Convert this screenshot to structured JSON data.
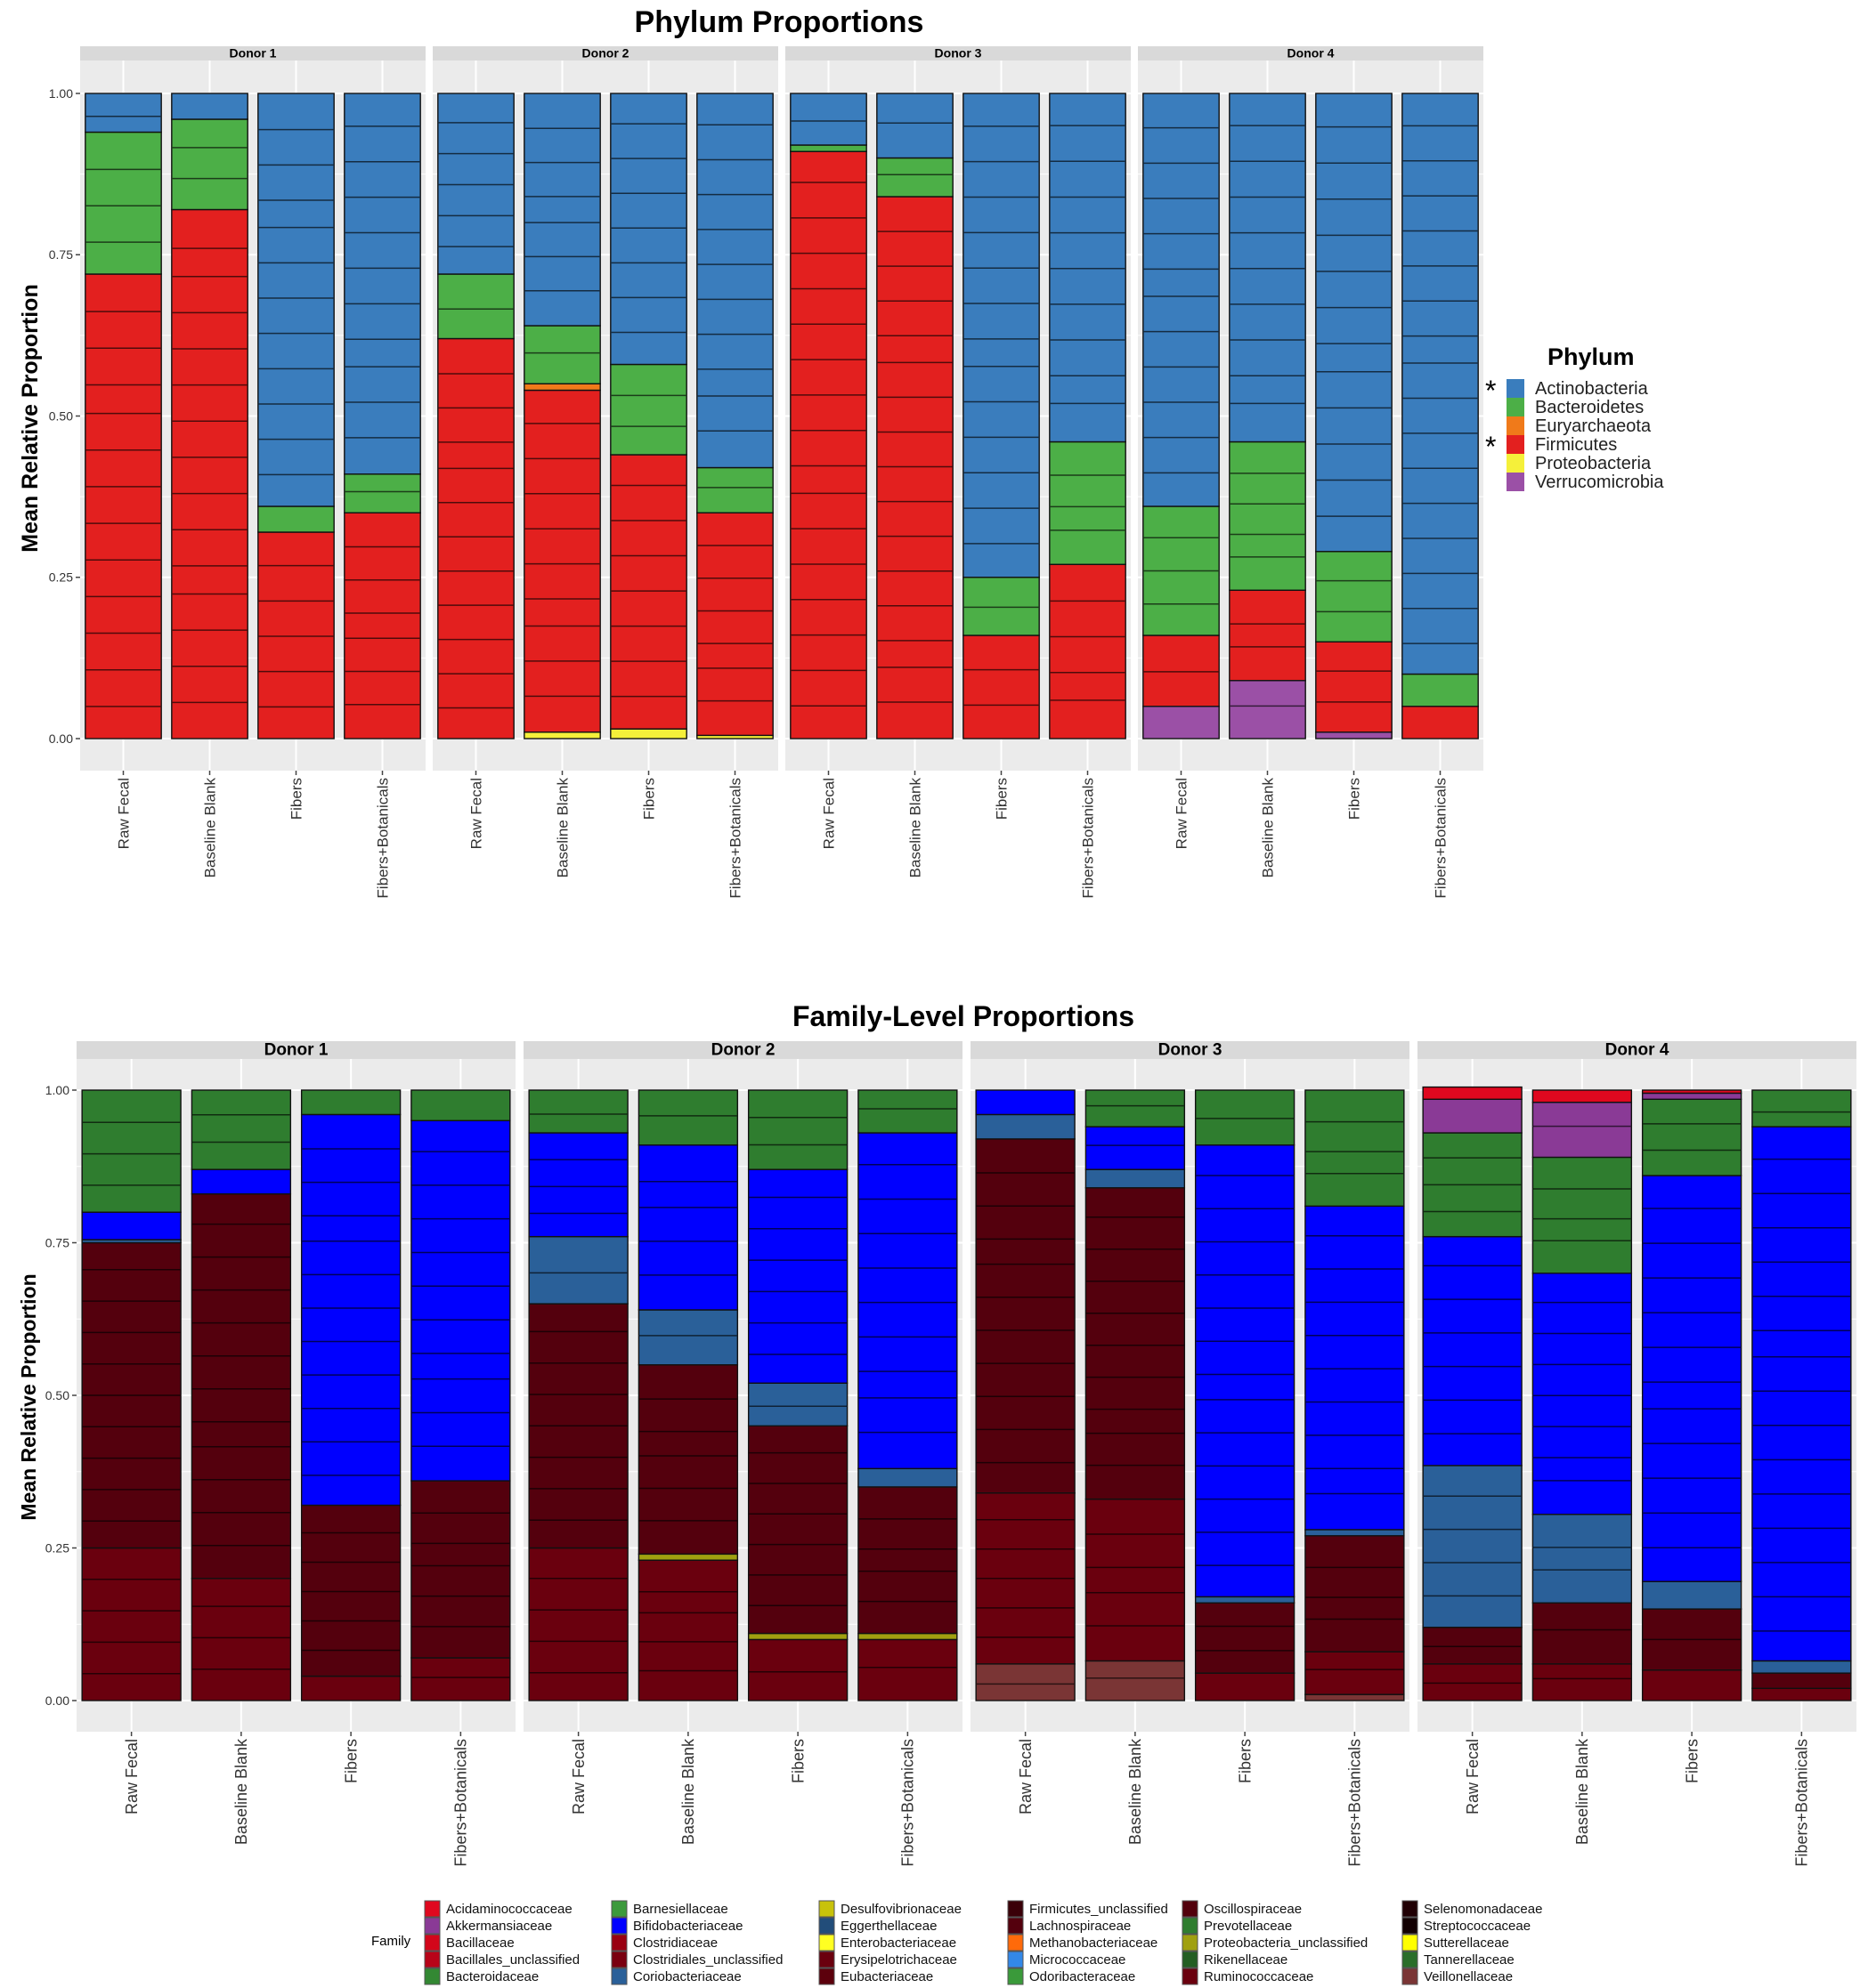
{
  "chart_data": [
    {
      "type": "bar",
      "stacked": true,
      "title": "Phylum Proportions",
      "xlabel": "",
      "ylabel": "Mean Relative Proportion",
      "ylim": [
        0,
        1
      ],
      "yticks": [
        "0.00",
        "0.25",
        "0.50",
        "0.75",
        "1.00"
      ],
      "grid": true,
      "facets": [
        "Donor 1",
        "Donor 2",
        "Donor 3",
        "Donor 4"
      ],
      "categories": [
        "Raw Fecal",
        "Baseline Blank",
        "Fibers",
        "Fibers+Botanicals"
      ],
      "legend": {
        "title": "Phylum",
        "position": "right",
        "entries": [
          {
            "name": "Actinobacteria",
            "color": "#3a7dbd",
            "marked": "*"
          },
          {
            "name": "Bacteroidetes",
            "color": "#4caf47",
            "marked": ""
          },
          {
            "name": "Euryarchaeota",
            "color": "#f07a1a",
            "marked": ""
          },
          {
            "name": "Firmicutes",
            "color": "#e3201f",
            "marked": "*"
          },
          {
            "name": "Proteobacteria",
            "color": "#f5f03a",
            "marked": ""
          },
          {
            "name": "Verrucomicrobia",
            "color": "#9b50a6",
            "marked": ""
          }
        ]
      },
      "stack_order_bottom_to_top": [
        "Verrucomicrobia",
        "Proteobacteria",
        "Firmicutes",
        "Euryarchaeota",
        "Bacteroidetes",
        "Actinobacteria"
      ],
      "data": {
        "Donor 1": [
          {
            "Verrucomicrobia": 0,
            "Proteobacteria": 0,
            "Firmicutes": 0.72,
            "Euryarchaeota": 0,
            "Bacteroidetes": 0.22,
            "Actinobacteria": 0.06
          },
          {
            "Verrucomicrobia": 0,
            "Proteobacteria": 0,
            "Firmicutes": 0.82,
            "Euryarchaeota": 0,
            "Bacteroidetes": 0.14,
            "Actinobacteria": 0.04
          },
          {
            "Verrucomicrobia": 0,
            "Proteobacteria": 0,
            "Firmicutes": 0.32,
            "Euryarchaeota": 0,
            "Bacteroidetes": 0.04,
            "Actinobacteria": 0.64
          },
          {
            "Verrucomicrobia": 0,
            "Proteobacteria": 0,
            "Firmicutes": 0.35,
            "Euryarchaeota": 0,
            "Bacteroidetes": 0.06,
            "Actinobacteria": 0.59
          }
        ],
        "Donor 2": [
          {
            "Verrucomicrobia": 0,
            "Proteobacteria": 0,
            "Firmicutes": 0.62,
            "Euryarchaeota": 0,
            "Bacteroidetes": 0.1,
            "Actinobacteria": 0.28
          },
          {
            "Verrucomicrobia": 0,
            "Proteobacteria": 0.01,
            "Firmicutes": 0.53,
            "Euryarchaeota": 0.01,
            "Bacteroidetes": 0.09,
            "Actinobacteria": 0.36
          },
          {
            "Verrucomicrobia": 0,
            "Proteobacteria": 0.015,
            "Firmicutes": 0.425,
            "Euryarchaeota": 0,
            "Bacteroidetes": 0.14,
            "Actinobacteria": 0.42
          },
          {
            "Verrucomicrobia": 0,
            "Proteobacteria": 0.005,
            "Firmicutes": 0.345,
            "Euryarchaeota": 0,
            "Bacteroidetes": 0.07,
            "Actinobacteria": 0.58
          }
        ],
        "Donor 3": [
          {
            "Verrucomicrobia": 0,
            "Proteobacteria": 0,
            "Firmicutes": 0.91,
            "Euryarchaeota": 0,
            "Bacteroidetes": 0.01,
            "Actinobacteria": 0.08
          },
          {
            "Verrucomicrobia": 0,
            "Proteobacteria": 0,
            "Firmicutes": 0.84,
            "Euryarchaeota": 0,
            "Bacteroidetes": 0.06,
            "Actinobacteria": 0.1
          },
          {
            "Verrucomicrobia": 0,
            "Proteobacteria": 0,
            "Firmicutes": 0.16,
            "Euryarchaeota": 0,
            "Bacteroidetes": 0.09,
            "Actinobacteria": 0.75
          },
          {
            "Verrucomicrobia": 0,
            "Proteobacteria": 0,
            "Firmicutes": 0.27,
            "Euryarchaeota": 0,
            "Bacteroidetes": 0.19,
            "Actinobacteria": 0.54
          }
        ],
        "Donor 4": [
          {
            "Verrucomicrobia": 0.05,
            "Proteobacteria": 0,
            "Firmicutes": 0.11,
            "Euryarchaeota": 0,
            "Bacteroidetes": 0.2,
            "Actinobacteria": 0.64
          },
          {
            "Verrucomicrobia": 0.09,
            "Proteobacteria": 0,
            "Firmicutes": 0.14,
            "Euryarchaeota": 0,
            "Bacteroidetes": 0.23,
            "Actinobacteria": 0.54
          },
          {
            "Verrucomicrobia": 0.01,
            "Proteobacteria": 0,
            "Firmicutes": 0.14,
            "Euryarchaeota": 0,
            "Bacteroidetes": 0.14,
            "Actinobacteria": 0.71
          },
          {
            "Verrucomicrobia": 0,
            "Proteobacteria": 0,
            "Firmicutes": 0.05,
            "Euryarchaeota": 0,
            "Bacteroidetes": 0.05,
            "Actinobacteria": 0.9
          }
        ]
      }
    },
    {
      "type": "bar",
      "stacked": true,
      "title": "Family-Level Proportions",
      "xlabel": "",
      "ylabel": "Mean Relative Proportion",
      "ylim": [
        0,
        1
      ],
      "yticks": [
        "0.00",
        "0.25",
        "0.50",
        "0.75",
        "1.00"
      ],
      "grid": true,
      "facets": [
        "Donor 1",
        "Donor 2",
        "Donor 3",
        "Donor 4"
      ],
      "categories": [
        "Raw Fecal",
        "Baseline Blank",
        "Fibers",
        "Fibers+Botanicals"
      ],
      "legend": {
        "title": "Family",
        "position": "bottom",
        "entries": [
          {
            "name": "Acidaminococcaceae",
            "color": "#e0081f"
          },
          {
            "name": "Akkermansiaceae",
            "color": "#8a3a96"
          },
          {
            "name": "Bacillaceae",
            "color": "#d3061a"
          },
          {
            "name": "Bacillales_unclassified",
            "color": "#b80419"
          },
          {
            "name": "Bacteroidaceae",
            "color": "#338833"
          },
          {
            "name": "Barnesiellaceae",
            "color": "#3c9a3c"
          },
          {
            "name": "Bifidobacteriaceae",
            "color": "#0000ff"
          },
          {
            "name": "Clostridiaceae",
            "color": "#990011"
          },
          {
            "name": "Clostridiales_unclassified",
            "color": "#7a0010"
          },
          {
            "name": "Coriobacteriaceae",
            "color": "#2a6099"
          },
          {
            "name": "Desulfovibrionaceae",
            "color": "#c8c20a"
          },
          {
            "name": "Eggerthellaceae",
            "color": "#224d7a"
          },
          {
            "name": "Enterobacteriaceae",
            "color": "#ffff22"
          },
          {
            "name": "Erysipelotrichaceae",
            "color": "#6a000e"
          },
          {
            "name": "Eubacteriaceae",
            "color": "#5c000c"
          },
          {
            "name": "Firmicutes_unclassified",
            "color": "#3a0008"
          },
          {
            "name": "Lachnospiraceae",
            "color": "#54000d"
          },
          {
            "name": "Methanobacteriaceae",
            "color": "#ff6a0a"
          },
          {
            "name": "Micrococcaceae",
            "color": "#3388e8"
          },
          {
            "name": "Odoribacteraceae",
            "color": "#3a9a3a"
          },
          {
            "name": "Oscillospiraceae",
            "color": "#52000c"
          },
          {
            "name": "Prevotellaceae",
            "color": "#2f7d2f"
          },
          {
            "name": "Proteobacteria_unclassified",
            "color": "#a0a010"
          },
          {
            "name": "Rikenellaceae",
            "color": "#235e23"
          },
          {
            "name": "Ruminococcaceae",
            "color": "#6a000e"
          },
          {
            "name": "Selenomonadaceae",
            "color": "#200004"
          },
          {
            "name": "Streptococcaceae",
            "color": "#120002"
          },
          {
            "name": "Sutterellaceae",
            "color": "#ffff00"
          },
          {
            "name": "Tannerellaceae",
            "color": "#2a6e2a"
          },
          {
            "name": "Veillonellaceae",
            "color": "#7a3535"
          }
        ]
      },
      "groups_bottom_to_top": [
        "Veillonellaceae",
        "Ruminococcaceae",
        "Proteobacteria_unclassified",
        "Lachnospiraceae",
        "Bacteroidaceae",
        "Coriobacteriaceae",
        "Bifidobacteriaceae",
        "Akkermansiaceae",
        "Acidaminococcaceae"
      ],
      "data": {
        "Donor 1": [
          {
            "Veillonellaceae": 0,
            "Ruminococcaceae": 0.25,
            "Proteobacteria_unclassified": 0,
            "Lachnospiraceae": 0.5,
            "Bacteroidaceae": 0,
            "Coriobacteriaceae": 0.005,
            "Bifidobacteriaceae": 0.045,
            "Akkermansiaceae": 0,
            "Acidaminococcaceae": 0,
            "Prevotellaceae": 0.2
          },
          {
            "Veillonellaceae": 0,
            "Ruminococcaceae": 0.2,
            "Proteobacteria_unclassified": 0,
            "Lachnospiraceae": 0.63,
            "Bacteroidaceae": 0,
            "Coriobacteriaceae": 0,
            "Bifidobacteriaceae": 0.04,
            "Akkermansiaceae": 0,
            "Acidaminococcaceae": 0,
            "Prevotellaceae": 0.13
          },
          {
            "Veillonellaceae": 0,
            "Ruminococcaceae": 0.04,
            "Proteobacteria_unclassified": 0,
            "Lachnospiraceae": 0.28,
            "Bacteroidaceae": 0,
            "Coriobacteriaceae": 0,
            "Bifidobacteriaceae": 0.64,
            "Akkermansiaceae": 0,
            "Acidaminococcaceae": 0,
            "Prevotellaceae": 0.04
          },
          {
            "Veillonellaceae": 0,
            "Ruminococcaceae": 0.07,
            "Proteobacteria_unclassified": 0,
            "Lachnospiraceae": 0.29,
            "Bacteroidaceae": 0,
            "Coriobacteriaceae": 0,
            "Bifidobacteriaceae": 0.59,
            "Akkermansiaceae": 0,
            "Acidaminococcaceae": 0,
            "Prevotellaceae": 0.05
          }
        ],
        "Donor 2": [
          {
            "Veillonellaceae": 0,
            "Ruminococcaceae": 0.25,
            "Proteobacteria_unclassified": 0,
            "Lachnospiraceae": 0.4,
            "Bacteroidaceae": 0,
            "Coriobacteriaceae": 0.11,
            "Bifidobacteriaceae": 0.17,
            "Akkermansiaceae": 0,
            "Acidaminococcaceae": 0,
            "Prevotellaceae": 0.07
          },
          {
            "Veillonellaceae": 0,
            "Ruminococcaceae": 0.23,
            "Proteobacteria_unclassified": 0.01,
            "Lachnospiraceae": 0.31,
            "Bacteroidaceae": 0,
            "Coriobacteriaceae": 0.09,
            "Bifidobacteriaceae": 0.27,
            "Akkermansiaceae": 0,
            "Acidaminococcaceae": 0,
            "Prevotellaceae": 0.09
          },
          {
            "Veillonellaceae": 0,
            "Ruminococcaceae": 0.1,
            "Proteobacteria_unclassified": 0.01,
            "Lachnospiraceae": 0.34,
            "Bacteroidaceae": 0,
            "Coriobacteriaceae": 0.07,
            "Bifidobacteriaceae": 0.35,
            "Akkermansiaceae": 0,
            "Acidaminococcaceae": 0,
            "Prevotellaceae": 0.13
          },
          {
            "Veillonellaceae": 0,
            "Ruminococcaceae": 0.1,
            "Proteobacteria_unclassified": 0.01,
            "Lachnospiraceae": 0.24,
            "Bacteroidaceae": 0,
            "Coriobacteriaceae": 0.03,
            "Bifidobacteriaceae": 0.55,
            "Akkermansiaceae": 0,
            "Acidaminococcaceae": 0,
            "Prevotellaceae": 0.07
          }
        ],
        "Donor 3": [
          {
            "Veillonellaceae": 0.06,
            "Ruminococcaceae": 0.28,
            "Proteobacteria_unclassified": 0,
            "Lachnospiraceae": 0.58,
            "Bacteroidaceae": 0,
            "Coriobacteriaceae": 0.04,
            "Bifidobacteriaceae": 0.04,
            "Akkermansiaceae": 0,
            "Acidaminococcaceae": 0,
            "Prevotellaceae": 0
          },
          {
            "Veillonellaceae": 0.065,
            "Ruminococcaceae": 0.265,
            "Proteobacteria_unclassified": 0,
            "Lachnospiraceae": 0.51,
            "Bacteroidaceae": 0,
            "Coriobacteriaceae": 0.03,
            "Bifidobacteriaceae": 0.07,
            "Akkermansiaceae": 0,
            "Acidaminococcaceae": 0,
            "Prevotellaceae": 0.06
          },
          {
            "Veillonellaceae": 0,
            "Ruminococcaceae": 0.045,
            "Proteobacteria_unclassified": 0,
            "Lachnospiraceae": 0.115,
            "Bacteroidaceae": 0,
            "Coriobacteriaceae": 0.01,
            "Bifidobacteriaceae": 0.74,
            "Akkermansiaceae": 0,
            "Acidaminococcaceae": 0,
            "Prevotellaceae": 0.09
          },
          {
            "Veillonellaceae": 0.01,
            "Ruminococcaceae": 0.07,
            "Proteobacteria_unclassified": 0,
            "Lachnospiraceae": 0.19,
            "Bacteroidaceae": 0,
            "Coriobacteriaceae": 0.01,
            "Bifidobacteriaceae": 0.53,
            "Akkermansiaceae": 0,
            "Acidaminococcaceae": 0,
            "Prevotellaceae": 0.19
          }
        ],
        "Donor 4": [
          {
            "Veillonellaceae": 0,
            "Ruminococcaceae": 0.06,
            "Proteobacteria_unclassified": 0,
            "Lachnospiraceae": 0.06,
            "Bacteroidaceae": 0,
            "Coriobacteriaceae": 0.265,
            "Bifidobacteriaceae": 0.375,
            "Akkermansiaceae": 0.055,
            "Acidaminococcaceae": 0.02,
            "Prevotellaceae": 0.17
          },
          {
            "Veillonellaceae": 0,
            "Ruminococcaceae": 0.06,
            "Proteobacteria_unclassified": 0,
            "Lachnospiraceae": 0.1,
            "Bacteroidaceae": 0,
            "Coriobacteriaceae": 0.145,
            "Bifidobacteriaceae": 0.395,
            "Akkermansiaceae": 0.09,
            "Acidaminococcaceae": 0.02,
            "Prevotellaceae": 0.19
          },
          {
            "Veillonellaceae": 0,
            "Ruminococcaceae": 0.05,
            "Proteobacteria_unclassified": 0,
            "Lachnospiraceae": 0.1,
            "Bacteroidaceae": 0,
            "Coriobacteriaceae": 0.045,
            "Bifidobacteriaceae": 0.665,
            "Akkermansiaceae": 0.01,
            "Acidaminococcaceae": 0.005,
            "Prevotellaceae": 0.125
          },
          {
            "Veillonellaceae": 0,
            "Ruminococcaceae": 0.02,
            "Proteobacteria_unclassified": 0,
            "Lachnospiraceae": 0.025,
            "Bacteroidaceae": 0,
            "Coriobacteriaceae": 0.02,
            "Bifidobacteriaceae": 0.875,
            "Akkermansiaceae": 0,
            "Acidaminococcaceae": 0,
            "Prevotellaceae": 0.06
          }
        ]
      }
    }
  ]
}
